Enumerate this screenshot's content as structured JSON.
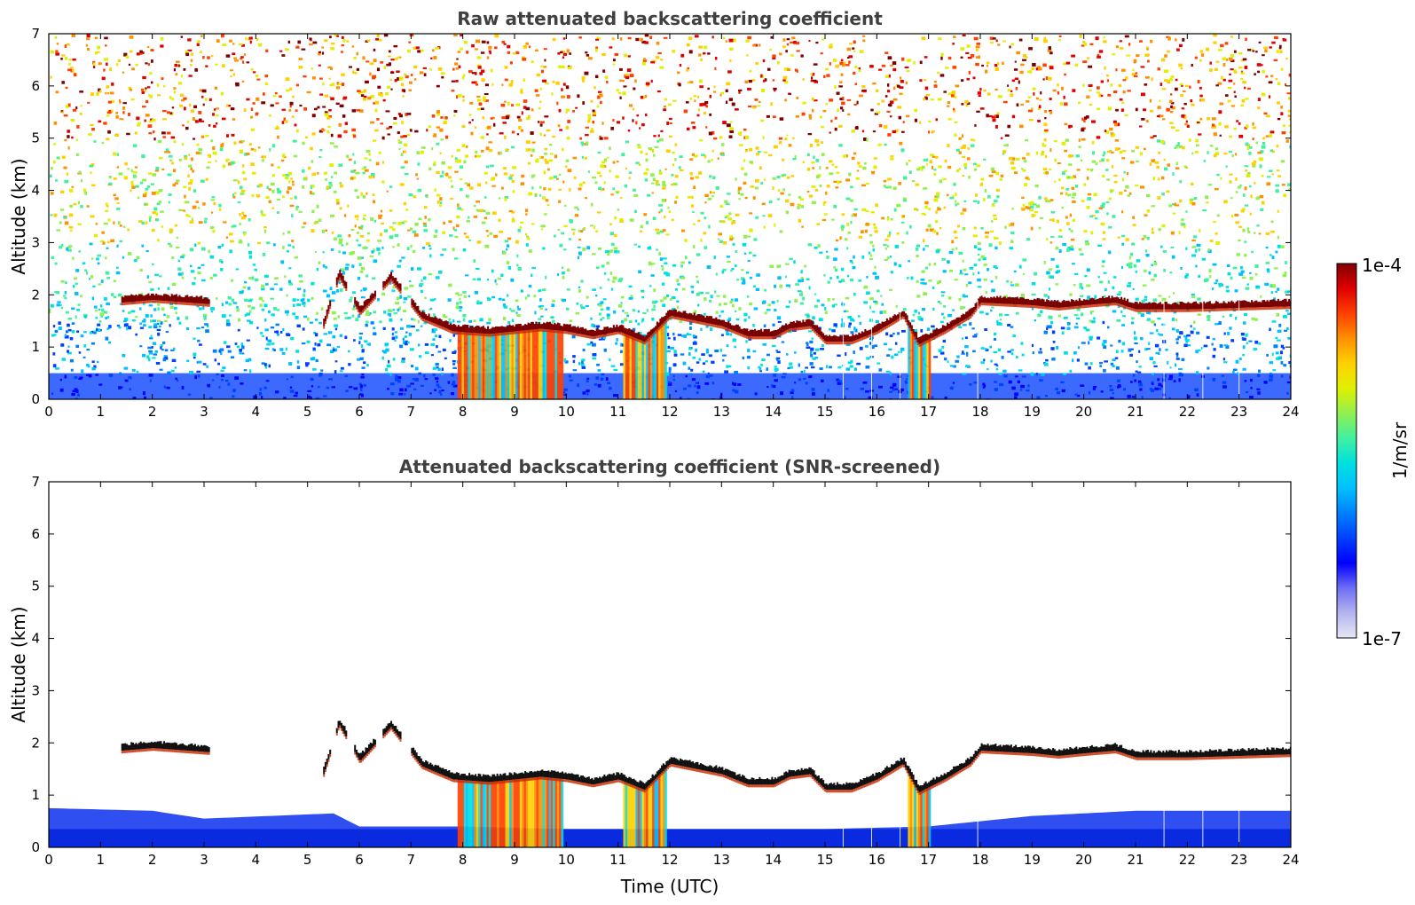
{
  "chart_data": [
    {
      "type": "heatmap",
      "title": "Raw attenuated backscattering coefficient",
      "xlabel": "",
      "ylabel": "Altitude (km)",
      "xlim": [
        0,
        24
      ],
      "ylim": [
        0,
        7
      ],
      "xticks": [
        "0",
        "1",
        "2",
        "3",
        "4",
        "5",
        "6",
        "7",
        "8",
        "9",
        "10",
        "11",
        "12",
        "13",
        "14",
        "15",
        "16",
        "17",
        "18",
        "19",
        "20",
        "21",
        "22",
        "23",
        "24"
      ],
      "yticks": [
        "0",
        "1",
        "2",
        "3",
        "4",
        "5",
        "6",
        "7"
      ],
      "grid": false,
      "noise_background": true,
      "cloud_layer": [
        {
          "t": 1.4,
          "alt": 1.85
        },
        {
          "t": 2.0,
          "alt": 1.9
        },
        {
          "t": 3.1,
          "alt": 1.82
        },
        {
          "t": 5.3,
          "alt": 1.4
        },
        {
          "t": 5.6,
          "alt": 2.35
        },
        {
          "t": 6.0,
          "alt": 1.65
        },
        {
          "t": 6.6,
          "alt": 2.3
        },
        {
          "t": 7.2,
          "alt": 1.55
        },
        {
          "t": 7.8,
          "alt": 1.3
        },
        {
          "t": 8.5,
          "alt": 1.25
        },
        {
          "t": 9.5,
          "alt": 1.35
        },
        {
          "t": 10.0,
          "alt": 1.3
        },
        {
          "t": 10.5,
          "alt": 1.2
        },
        {
          "t": 11.0,
          "alt": 1.3
        },
        {
          "t": 11.5,
          "alt": 1.1
        },
        {
          "t": 12.0,
          "alt": 1.6
        },
        {
          "t": 12.5,
          "alt": 1.5
        },
        {
          "t": 13.0,
          "alt": 1.4
        },
        {
          "t": 13.5,
          "alt": 1.2
        },
        {
          "t": 14.0,
          "alt": 1.2
        },
        {
          "t": 14.3,
          "alt": 1.35
        },
        {
          "t": 14.7,
          "alt": 1.4
        },
        {
          "t": 15.0,
          "alt": 1.1
        },
        {
          "t": 15.5,
          "alt": 1.1
        },
        {
          "t": 16.0,
          "alt": 1.3
        },
        {
          "t": 16.5,
          "alt": 1.6
        },
        {
          "t": 16.8,
          "alt": 1.05
        },
        {
          "t": 17.3,
          "alt": 1.3
        },
        {
          "t": 17.8,
          "alt": 1.6
        },
        {
          "t": 18.0,
          "alt": 1.85
        },
        {
          "t": 19.0,
          "alt": 1.8
        },
        {
          "t": 19.5,
          "alt": 1.75
        },
        {
          "t": 20.0,
          "alt": 1.8
        },
        {
          "t": 20.6,
          "alt": 1.85
        },
        {
          "t": 21.0,
          "alt": 1.72
        },
        {
          "t": 22.0,
          "alt": 1.72
        },
        {
          "t": 23.0,
          "alt": 1.75
        },
        {
          "t": 24.0,
          "alt": 1.78
        }
      ],
      "precipitation_shafts": [
        [
          7.9,
          9.9
        ],
        [
          11.1,
          11.9
        ],
        [
          16.6,
          17.0
        ]
      ],
      "boundary_layer_top": 0.5
    },
    {
      "type": "heatmap",
      "title": "Attenuated backscattering coefficient (SNR-screened)",
      "xlabel": "Time (UTC)",
      "ylabel": "Altitude (km)",
      "xlim": [
        0,
        24
      ],
      "ylim": [
        0,
        7
      ],
      "xticks": [
        "0",
        "1",
        "2",
        "3",
        "4",
        "5",
        "6",
        "7",
        "8",
        "9",
        "10",
        "11",
        "12",
        "13",
        "14",
        "15",
        "16",
        "17",
        "18",
        "19",
        "20",
        "21",
        "22",
        "23",
        "24"
      ],
      "yticks": [
        "0",
        "1",
        "2",
        "3",
        "4",
        "5",
        "6",
        "7"
      ],
      "grid": false,
      "noise_background": false,
      "boundary_layer_profile": [
        {
          "t": 0,
          "top": 0.75
        },
        {
          "t": 2,
          "top": 0.7
        },
        {
          "t": 3,
          "top": 0.55
        },
        {
          "t": 5.5,
          "top": 0.65
        },
        {
          "t": 6,
          "top": 0.4
        },
        {
          "t": 8,
          "top": 0.4
        },
        {
          "t": 10,
          "top": 0.35
        },
        {
          "t": 15,
          "top": 0.35
        },
        {
          "t": 17,
          "top": 0.4
        },
        {
          "t": 19,
          "top": 0.6
        },
        {
          "t": 21,
          "top": 0.7
        },
        {
          "t": 24,
          "top": 0.7
        }
      ]
    }
  ],
  "colorbar": {
    "max_label": "1e-4",
    "min_label": "1e-7",
    "label": "1/m/sr",
    "colors": [
      "#e6e6f5",
      "#b4b4f0",
      "#6e6ef5",
      "#0000ff",
      "#0040ff",
      "#0080ff",
      "#00c0ff",
      "#00e0e0",
      "#40f0a0",
      "#90f050",
      "#e0f000",
      "#ffd000",
      "#ff9000",
      "#ff4000",
      "#e00000",
      "#800000"
    ]
  },
  "palette": {
    "cloud_core": "#7a0000",
    "cloud_edge": "#cc2a00",
    "screened_core": "#111111",
    "bl_blue": "#1a3cf0"
  }
}
